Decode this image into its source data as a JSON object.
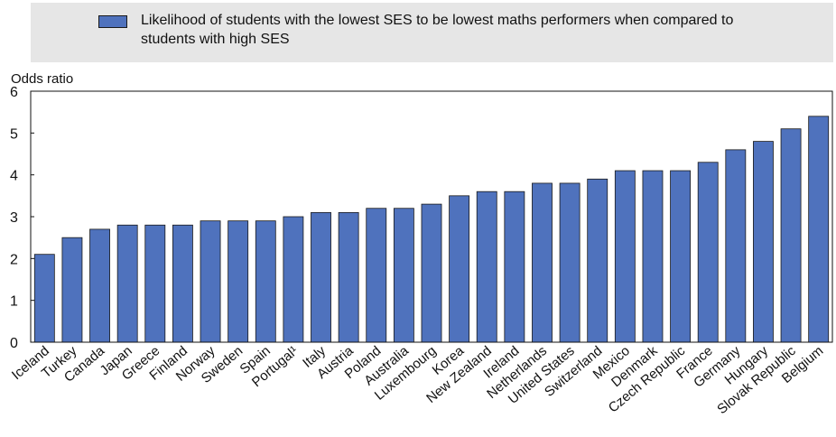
{
  "chart_data": {
    "type": "bar",
    "title": "",
    "legend": {
      "label": "Likelihood of students with the lowest SES to be lowest maths performers when compared to students with high SES",
      "placement": "top"
    },
    "ylabel": "Odds ratio",
    "xlabel": "",
    "ylim": [
      0,
      6
    ],
    "yticks": [
      0,
      1,
      2,
      3,
      4,
      5,
      6
    ],
    "grid": false,
    "categories": [
      "Iceland",
      "Turkey",
      "Canada",
      "Japan",
      "Greece",
      "Finland",
      "Norway",
      "Sweden",
      "Spain",
      "Portugal¹",
      "Italy",
      "Austria",
      "Poland",
      "Australia",
      "Luxembourg",
      "Korea",
      "New Zealand",
      "Ireland",
      "Netherlands",
      "United States",
      "Switzerland",
      "Mexico",
      "Denmark",
      "Czech Republic",
      "France",
      "Germany",
      "Hungary",
      "Slovak Republic",
      "Belgium"
    ],
    "values": [
      2.1,
      2.5,
      2.7,
      2.8,
      2.8,
      2.8,
      2.9,
      2.9,
      2.9,
      3.0,
      3.1,
      3.1,
      3.2,
      3.2,
      3.3,
      3.5,
      3.6,
      3.6,
      3.8,
      3.8,
      3.9,
      4.1,
      4.1,
      4.1,
      4.3,
      4.6,
      4.8,
      5.1,
      5.4
    ],
    "colors": {
      "bar": "#4f72bd",
      "bar_outline": "#1a1a1a",
      "legend_background": "#e6e6e6"
    }
  }
}
